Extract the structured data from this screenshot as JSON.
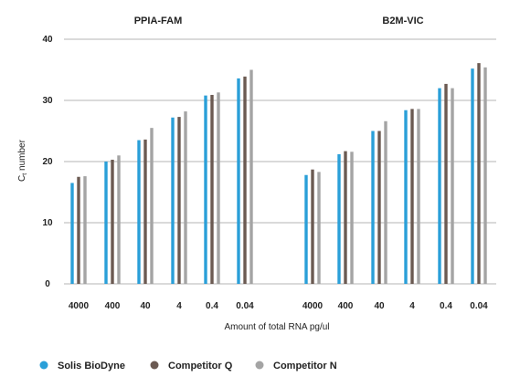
{
  "chart_data": {
    "type": "bar",
    "ylabel_main": "C",
    "ylabel_sub": "t",
    "ylabel_rest": " number",
    "xlabel": "Amount of total RNA pg/ul",
    "ylim": [
      0,
      40
    ],
    "yticks": [
      "0",
      "10",
      "20",
      "30",
      "40"
    ],
    "grid": true,
    "legend_position": "bottom-left",
    "series_meta": [
      {
        "name": "Solis BioDyne",
        "color": "#2a9fd8"
      },
      {
        "name": "Competitor Q",
        "color": "#6b5a52"
      },
      {
        "name": "Competitor N",
        "color": "#a4a4a4"
      }
    ],
    "panels": [
      {
        "title": "PPIA-FAM",
        "categories": [
          "4000",
          "400",
          "40",
          "4",
          "0.4",
          "0.04"
        ],
        "series": [
          {
            "name": "Solis BioDyne",
            "values": [
              16.5,
              20.0,
              23.5,
              27.2,
              30.8,
              33.6
            ]
          },
          {
            "name": "Competitor Q",
            "values": [
              17.5,
              20.3,
              23.6,
              27.3,
              30.9,
              33.9
            ]
          },
          {
            "name": "Competitor N",
            "values": [
              17.6,
              21.0,
              25.5,
              28.2,
              31.3,
              35.0
            ]
          }
        ]
      },
      {
        "title": "B2M-VIC",
        "categories": [
          "4000",
          "400",
          "40",
          "4",
          "0.4",
          "0.04"
        ],
        "series": [
          {
            "name": "Solis BioDyne",
            "values": [
              17.8,
              21.2,
              25.0,
              28.4,
              32.0,
              35.2
            ]
          },
          {
            "name": "Competitor Q",
            "values": [
              18.7,
              21.7,
              25.0,
              28.6,
              32.7,
              36.1
            ]
          },
          {
            "name": "Competitor N",
            "values": [
              18.3,
              21.6,
              26.6,
              28.6,
              32.0,
              35.4
            ]
          }
        ]
      }
    ]
  }
}
